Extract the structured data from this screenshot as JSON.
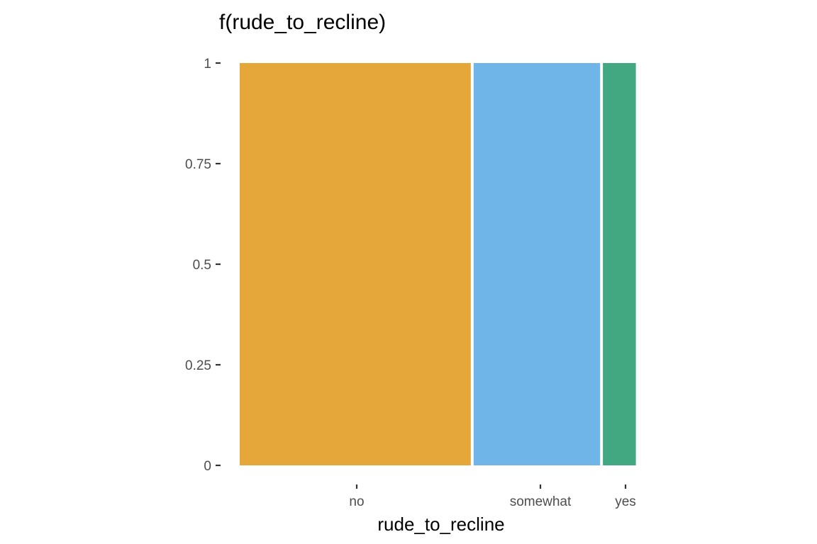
{
  "chart_data": {
    "type": "bar",
    "subtype": "spine",
    "title": "f(rude_to_recline)",
    "xlabel": "rude_to_recline",
    "ylabel": "",
    "categories": [
      "no",
      "somewhat",
      "yes"
    ],
    "proportions": [
      0.575,
      0.32,
      0.085
    ],
    "values": [
      1,
      1,
      1
    ],
    "colors": [
      "#E5A73A",
      "#6FB5E8",
      "#41A882"
    ],
    "ylim": [
      0,
      1
    ],
    "yticks": [
      0,
      0.25,
      0.5,
      0.75,
      1
    ],
    "ytick_labels": [
      "0",
      "0.25",
      "0.5",
      "0.75",
      "1"
    ],
    "grid": false,
    "legend": "none"
  }
}
